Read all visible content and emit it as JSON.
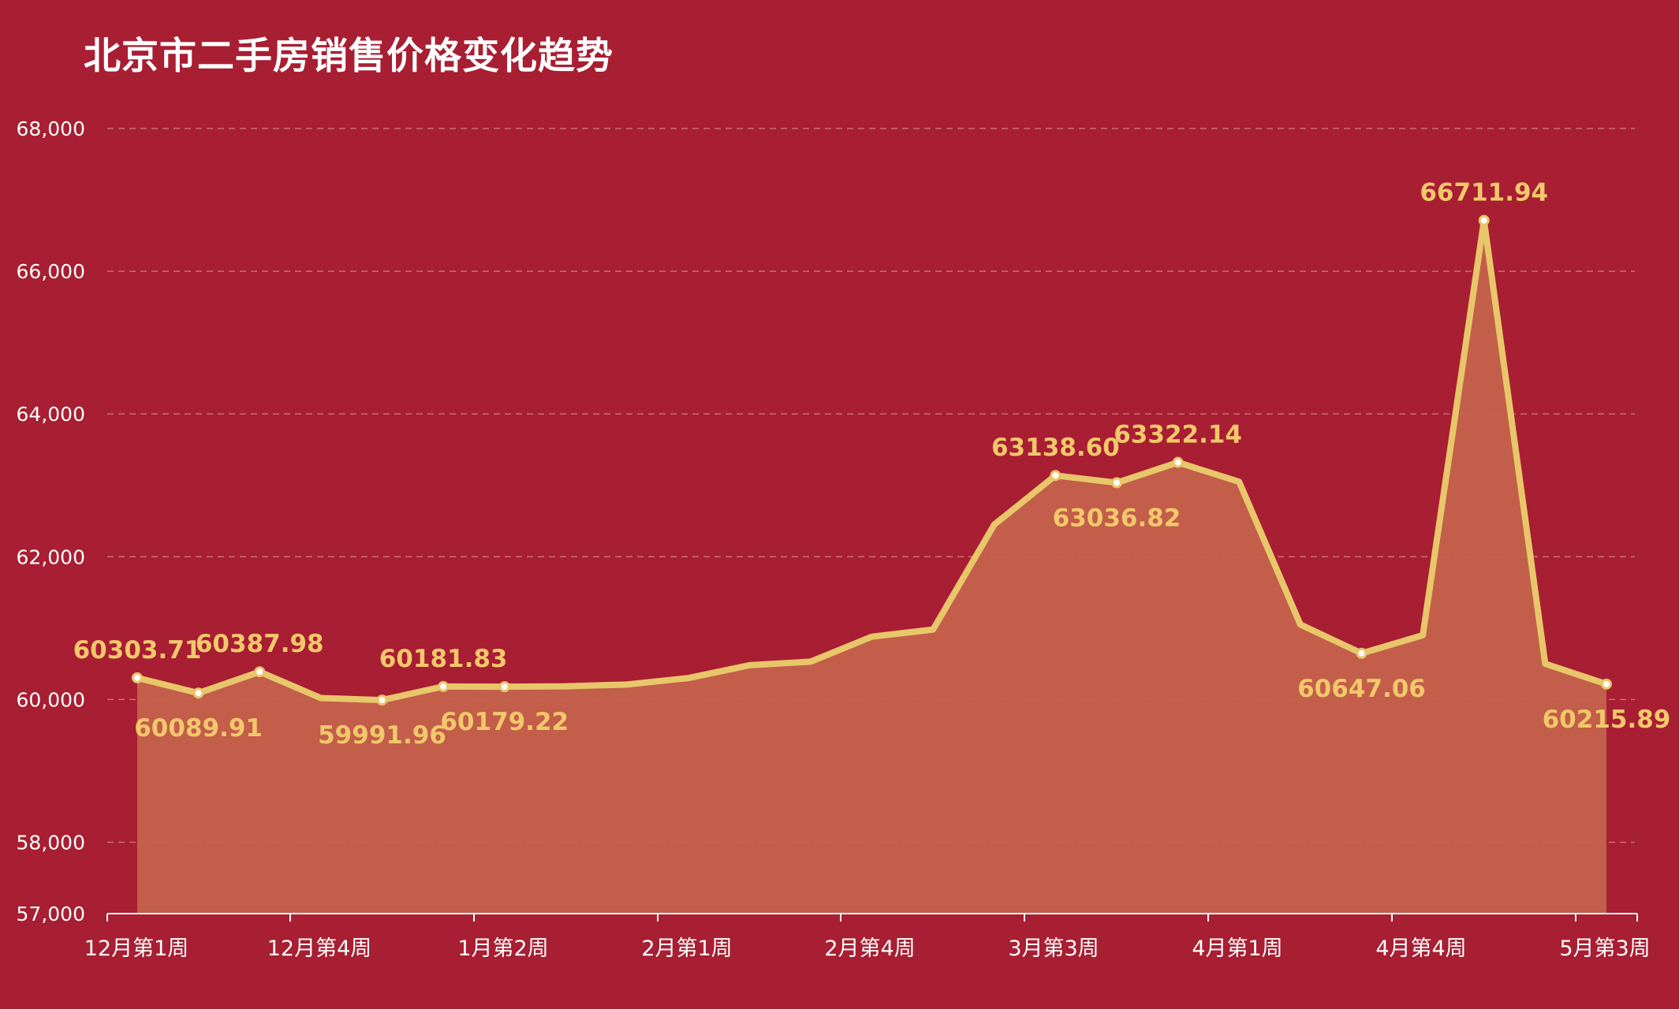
{
  "chart_data": {
    "type": "area",
    "title": "北京市二手房销售价格变化趋势",
    "xlabel": "",
    "ylabel": "",
    "ylim": [
      57000,
      68000
    ],
    "yticks": [
      57000,
      58000,
      60000,
      62000,
      64000,
      66000,
      68000
    ],
    "ytick_labels": [
      "57,000",
      "58,000",
      "60,000",
      "62,000",
      "64,000",
      "66,000",
      "68,000"
    ],
    "x_axis_labels": [
      "12月第1周",
      "12月第4周",
      "1月第2周",
      "2月第1周",
      "2月第4周",
      "3月第3周",
      "4月第1周",
      "4月第4周",
      "5月第3周"
    ],
    "values": [
      60303.71,
      60089.91,
      60387.98,
      60020,
      59991.96,
      60181.83,
      60179.22,
      60185,
      60210,
      60300,
      60480,
      60530,
      60880,
      60980,
      62450,
      63138.6,
      63036.82,
      63322.14,
      63050,
      61050,
      60647.06,
      60900,
      66711.94,
      60500,
      60215.89
    ],
    "data_labels": [
      {
        "index": 0,
        "text": "60303.71",
        "pos": "above"
      },
      {
        "index": 1,
        "text": "60089.91",
        "pos": "below"
      },
      {
        "index": 2,
        "text": "60387.98",
        "pos": "above"
      },
      {
        "index": 4,
        "text": "59991.96",
        "pos": "below"
      },
      {
        "index": 5,
        "text": "60181.83",
        "pos": "above"
      },
      {
        "index": 6,
        "text": "60179.22",
        "pos": "below"
      },
      {
        "index": 15,
        "text": "63138.60",
        "pos": "above"
      },
      {
        "index": 16,
        "text": "63036.82",
        "pos": "below"
      },
      {
        "index": 17,
        "text": "63322.14",
        "pos": "above"
      },
      {
        "index": 20,
        "text": "60647.06",
        "pos": "below"
      },
      {
        "index": 22,
        "text": "66711.94",
        "pos": "above"
      },
      {
        "index": 24,
        "text": "60215.89",
        "pos": "below"
      }
    ],
    "markers_at": [
      0,
      1,
      2,
      4,
      5,
      6,
      15,
      16,
      17,
      20,
      22,
      24
    ],
    "grid": true,
    "grid_style": "dashed",
    "colors": {
      "background": "#a81e32",
      "line": "#e8c66a",
      "area": "#c4624c",
      "label": "#f2c86b",
      "axis_text": "#ffffff",
      "grid": "#d98a8f"
    }
  }
}
